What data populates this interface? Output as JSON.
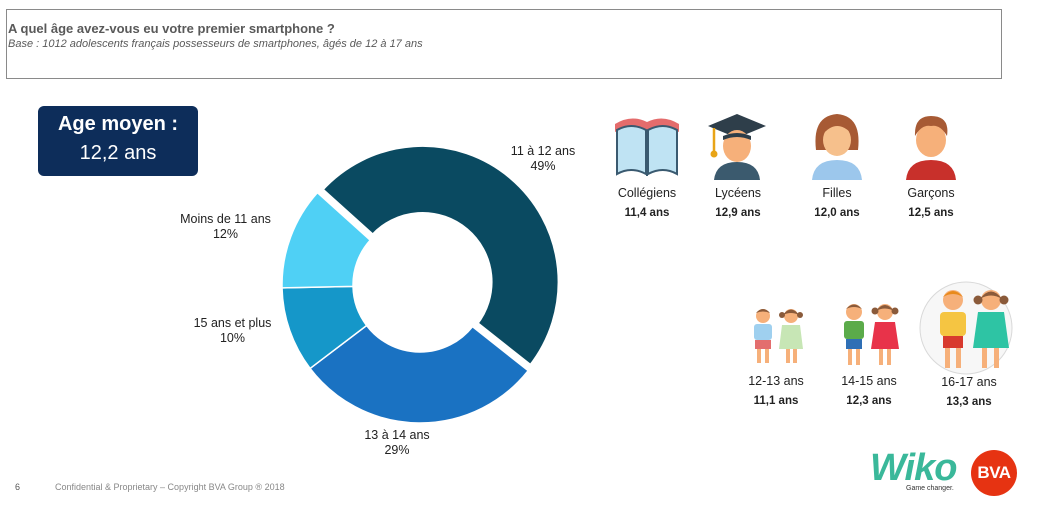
{
  "header": {
    "title": "A quel âge avez-vous eu votre premier smartphone ?",
    "subtitle": "Base : 1012 adolescents français possesseurs de smartphones, âgés de 12 à 17 ans"
  },
  "average": {
    "label": "Age moyen :",
    "value": "12,2 ans"
  },
  "chart_data": {
    "type": "pie",
    "title": "",
    "style": "donut",
    "slices": [
      {
        "label": "11 à 12 ans",
        "value": 49,
        "value_label": "49%",
        "color": "#0a4a61"
      },
      {
        "label": "13 à 14 ans",
        "value": 29,
        "value_label": "29%",
        "color": "#1a72c2"
      },
      {
        "label": "15 ans et plus",
        "value": 10,
        "value_label": "10%",
        "color": "#1597c9"
      },
      {
        "label": "Moins de 11 ans",
        "value": 12,
        "value_label": "12%",
        "color": "#4fd0f5"
      }
    ]
  },
  "groups": [
    {
      "icon": "book-icon",
      "label": "Collégiens",
      "value": "11,4 ans"
    },
    {
      "icon": "graduate-icon",
      "label": "Lycéens",
      "value": "12,9 ans"
    },
    {
      "icon": "girl-icon",
      "label": "Filles",
      "value": "12,0 ans"
    },
    {
      "icon": "boy-icon",
      "label": "Garçons",
      "value": "12,5 ans"
    }
  ],
  "ages": [
    {
      "icon": "kids-12-13-icon",
      "label": "12-13 ans",
      "value": "11,1 ans"
    },
    {
      "icon": "kids-14-15-icon",
      "label": "14-15 ans",
      "value": "12,3 ans"
    },
    {
      "icon": "kids-16-17-icon",
      "label": "16-17 ans",
      "value": "13,3 ans"
    }
  ],
  "footer": {
    "page": "6",
    "copyright": "Confidential & Proprietary – Copyright BVA Group ®  2018"
  },
  "logos": {
    "wiko": "Wiko",
    "wiko_tagline": "Game changer.",
    "bva": "BVA"
  }
}
